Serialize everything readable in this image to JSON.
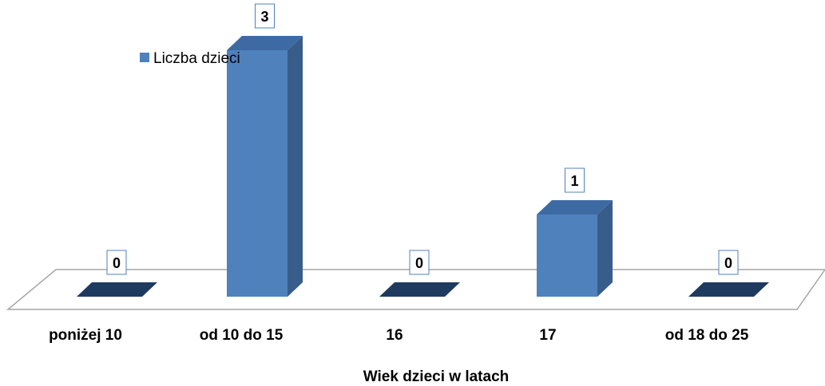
{
  "chart_data": {
    "type": "bar",
    "categories": [
      "poniżej 10",
      "od 10 do 15",
      "16",
      "17",
      "od 18 do 25"
    ],
    "series": [
      {
        "name": "Liczba dzieci",
        "values": [
          0,
          3,
          0,
          1,
          0
        ]
      }
    ],
    "data_labels": [
      "0",
      "3",
      "0",
      "1",
      "0"
    ],
    "xlabel": "Wiek dzieci w latach",
    "ylabel": "",
    "ylim": [
      0,
      3
    ],
    "grid": false,
    "legend": {
      "placement": "top-left"
    },
    "colors": {
      "bar_front": "#4f81bd",
      "bar_side": "#385d8a",
      "bar_top": "#3e6aa3",
      "floor_stroke": "#a6a6a6",
      "floor_fill": "#ffffff",
      "base_shadow": "#1f3a5f",
      "label_border": "#4f81bd"
    }
  }
}
